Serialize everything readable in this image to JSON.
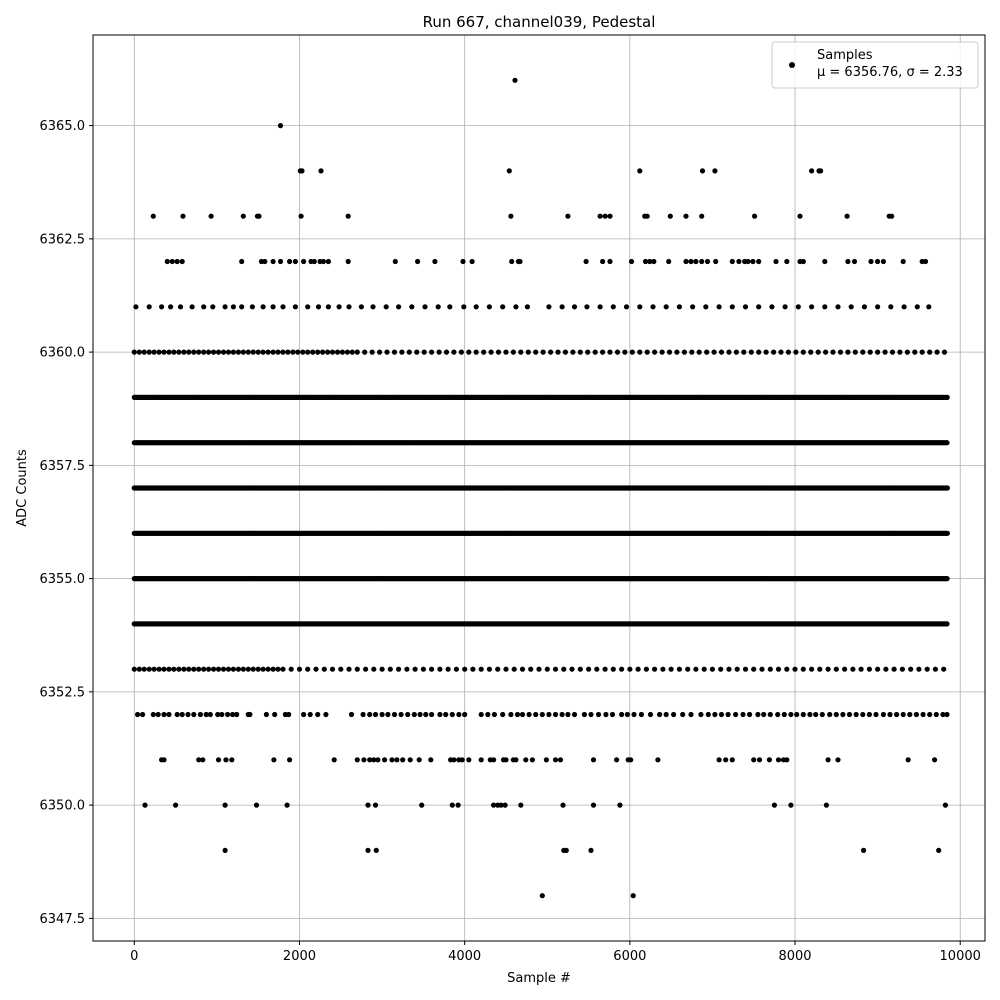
{
  "chart_data": {
    "type": "scatter",
    "title": "Run 667, channel039, Pedestal",
    "xlabel": "Sample #",
    "ylabel": "ADC Counts",
    "xlim": [
      -500,
      10300
    ],
    "ylim": [
      6347,
      6367
    ],
    "xticks": [
      0,
      2000,
      4000,
      6000,
      8000,
      10000
    ],
    "yticks": [
      6347.5,
      6350.0,
      6352.5,
      6355.0,
      6357.5,
      6360.0,
      6362.5,
      6365.0
    ],
    "grid": true,
    "legend_position": "top-right",
    "marker_color": "#000000",
    "series": [
      {
        "name": "Samples",
        "stats_text": "μ = 6356.76, σ = 2.33",
        "density_note": "Dense horizontal bands at integer ADC values 6353-6359 across samples 0-9850",
        "levels": [
          {
            "y": 6366,
            "x": [
              4610
            ]
          },
          {
            "y": 6365,
            "x": [
              1770
            ]
          },
          {
            "y": 6364,
            "x": [
              2010,
              2030,
              2260,
              4540,
              6120,
              6880,
              7030,
              8200,
              8290,
              8310
            ]
          },
          {
            "y": 6363,
            "x": [
              230,
              590,
              930,
              1320,
              1490,
              1510,
              2020,
              2590,
              4560,
              5250,
              5640,
              5700,
              5760,
              6180,
              6210,
              6490,
              6680,
              6870,
              7510,
              8060,
              8630,
              9140,
              9170
            ]
          },
          {
            "y": 6362,
            "x": [
              400,
              460,
              520,
              580,
              1300,
              1540,
              1580,
              1680,
              1770,
              1880,
              1950,
              2050,
              2140,
              2180,
              2250,
              2290,
              2350,
              2590,
              3160,
              3430,
              3640,
              3980,
              4090,
              4570,
              4650,
              4670,
              5470,
              5670,
              5760,
              6020,
              6190,
              6240,
              6290,
              6470,
              6680,
              6740,
              6800,
              6870,
              6940,
              7040,
              7240,
              7320,
              7390,
              7430,
              7490,
              7560,
              7770,
              7900,
              8060,
              8100,
              8360,
              8640,
              8720,
              8920,
              9000,
              9070,
              9310,
              9540,
              9580
            ]
          },
          {
            "y": 6361,
            "x": [
              20,
              180,
              330,
              440,
              560,
              700,
              840,
              950,
              1100,
              1200,
              1300,
              1430,
              1560,
              1680,
              1800,
              1950,
              2100,
              2230,
              2350,
              2480,
              2600,
              2750,
              2890,
              3050,
              3200,
              3360,
              3520,
              3680,
              3820,
              3990,
              4140,
              4300,
              4460,
              4620,
              4760,
              5020,
              5180,
              5330,
              5480,
              5640,
              5800,
              5960,
              6120,
              6280,
              6440,
              6600,
              6760,
              6920,
              7080,
              7240,
              7400,
              7560,
              7720,
              7880,
              8040,
              8200,
              8360,
              8520,
              8680,
              8840,
              9000,
              9160,
              9320,
              9480,
              9620
            ]
          },
          {
            "y": 6360,
            "x": [
              0,
              60,
              120,
              180,
              240,
              300,
              360,
              420,
              480,
              540,
              600,
              660,
              720,
              780,
              840,
              900,
              960,
              1020,
              1080,
              1140,
              1200,
              1260,
              1320,
              1380,
              1440,
              1500,
              1560,
              1620,
              1680,
              1740,
              1800,
              1860,
              1920,
              1980,
              2040,
              2100,
              2160,
              2220,
              2280,
              2340,
              2400,
              2460,
              2520,
              2580,
              2640,
              2700,
              2790,
              2880,
              2970,
              3060,
              3150,
              3240,
              3330,
              3420,
              3510,
              3600,
              3690,
              3780,
              3870,
              3960,
              4050,
              4140,
              4230,
              4320,
              4410,
              4500,
              4590,
              4680,
              4770,
              4860,
              4950,
              5040,
              5130,
              5220,
              5310,
              5400,
              5490,
              5580,
              5670,
              5760,
              5850,
              5940,
              6030,
              6120,
              6210,
              6300,
              6390,
              6480,
              6570,
              6660,
              6750,
              6840,
              6930,
              7020,
              7110,
              7200,
              7290,
              7380,
              7470,
              7560,
              7650,
              7740,
              7830,
              7920,
              8010,
              8100,
              8190,
              8280,
              8370,
              8460,
              8550,
              8640,
              8730,
              8820,
              8910,
              9000,
              9090,
              9180,
              9270,
              9360,
              9450,
              9540,
              9630,
              9720,
              9810
            ]
          },
          {
            "y": 6353,
            "x": [
              0,
              60,
              120,
              180,
              240,
              300,
              360,
              420,
              480,
              540,
              600,
              660,
              720,
              780,
              840,
              900,
              960,
              1020,
              1080,
              1140,
              1200,
              1260,
              1320,
              1380,
              1440,
              1500,
              1560,
              1620,
              1680,
              1740,
              1800,
              1900,
              2000,
              2100,
              2200,
              2300,
              2400,
              2500,
              2600,
              2700,
              2800,
              2900,
              3000,
              3100,
              3200,
              3300,
              3400,
              3500,
              3600,
              3700,
              3800,
              3900,
              4000,
              4100,
              4200,
              4300,
              4400,
              4500,
              4600,
              4700,
              4800,
              4900,
              5000,
              5100,
              5200,
              5300,
              5400,
              5500,
              5600,
              5700,
              5800,
              5900,
              6000,
              6100,
              6200,
              6300,
              6400,
              6500,
              6600,
              6700,
              6800,
              6900,
              7000,
              7100,
              7200,
              7300,
              7400,
              7500,
              7600,
              7700,
              7800,
              7900,
              8000,
              8100,
              8200,
              8300,
              8400,
              8500,
              8600,
              8700,
              8800,
              8900,
              9000,
              9100,
              9200,
              9300,
              9400,
              9500,
              9600,
              9700,
              9800
            ]
          },
          {
            "y": 6352,
            "x": [
              40,
              100,
              230,
              290,
              360,
              420,
              520,
              580,
              650,
              720,
              800,
              870,
              920,
              1010,
              1060,
              1130,
              1190,
              1240,
              1380,
              1400,
              1600,
              1700,
              1830,
              1870,
              2050,
              2130,
              2220,
              2320,
              2630,
              2770,
              2850,
              2920,
              3000,
              3070,
              3150,
              3230,
              3310,
              3390,
              3460,
              3530,
              3600,
              3700,
              3770,
              3850,
              3930,
              4000,
              4200,
              4280,
              4360,
              4460,
              4560,
              4640,
              4700,
              4780,
              4860,
              4940,
              5020,
              5100,
              5180,
              5250,
              5330,
              5450,
              5530,
              5620,
              5710,
              5790,
              5900,
              5970,
              6050,
              6140,
              6250,
              6360,
              6440,
              6530,
              6640,
              6740,
              6860,
              6950,
              7030,
              7110,
              7190,
              7280,
              7370,
              7450,
              7550,
              7620,
              7700,
              7790,
              7870,
              7950,
              8020,
              8100,
              8180,
              8250,
              8330,
              8420,
              8500,
              8580,
              8660,
              8740,
              8820,
              8900,
              8980,
              9070,
              9150,
              9230,
              9310,
              9390,
              9470,
              9550,
              9630,
              9710,
              9790,
              9840
            ]
          },
          {
            "y": 6351,
            "x": [
              330,
              360,
              780,
              830,
              1020,
              1110,
              1180,
              1690,
              1880,
              2420,
              2700,
              2780,
              2850,
              2900,
              2950,
              3030,
              3120,
              3180,
              3250,
              3340,
              3450,
              3590,
              3830,
              3870,
              3930,
              3970,
              4050,
              4200,
              4310,
              4350,
              4470,
              4500,
              4590,
              4620,
              4740,
              4820,
              4990,
              5100,
              5160,
              5560,
              5840,
              5980,
              6010,
              6340,
              7080,
              7160,
              7240,
              7500,
              7570,
              7690,
              7800,
              7860,
              7900,
              8400,
              8520,
              9370,
              9690
            ]
          },
          {
            "y": 6350,
            "x": [
              130,
              500,
              1100,
              1480,
              1850,
              2830,
              2920,
              3480,
              3850,
              3920,
              4350,
              4400,
              4440,
              4490,
              4680,
              5190,
              5560,
              5880,
              7750,
              7950,
              8380,
              9820
            ]
          },
          {
            "y": 6349,
            "x": [
              1100,
              2830,
              2930,
              5200,
              5230,
              5530,
              8830,
              9740
            ]
          },
          {
            "y": 6348,
            "x": [
              4940,
              6040
            ]
          }
        ],
        "bands": [
          {
            "y": 6359,
            "x_start": 0,
            "x_end": 9850,
            "step": 14
          },
          {
            "y": 6358,
            "x_start": 0,
            "x_end": 9850,
            "step": 12
          },
          {
            "y": 6357,
            "x_start": 0,
            "x_end": 9850,
            "step": 11
          },
          {
            "y": 6356,
            "x_start": 0,
            "x_end": 9850,
            "step": 11
          },
          {
            "y": 6355,
            "x_start": 0,
            "x_end": 9850,
            "step": 13
          },
          {
            "y": 6354,
            "x_start": 0,
            "x_end": 9850,
            "step": 16
          }
        ]
      }
    ]
  }
}
